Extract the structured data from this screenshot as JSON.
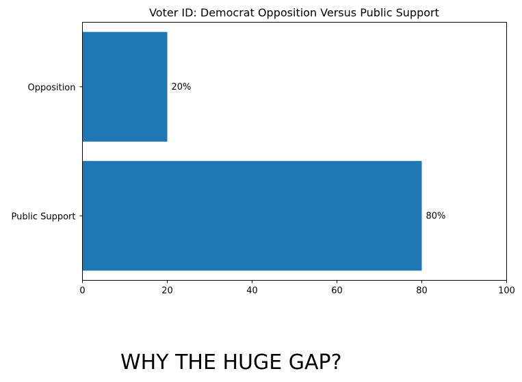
{
  "chart_data": {
    "type": "bar",
    "orientation": "horizontal",
    "title": "Voter ID: Democrat Opposition Versus Public Support",
    "xlabel": "",
    "ylabel": "",
    "categories": [
      "Public Support",
      "Opposition"
    ],
    "values": [
      80,
      20
    ],
    "data_labels": [
      "80%",
      "20%"
    ],
    "xlim": [
      0,
      100
    ],
    "xticks": [
      "0",
      "20",
      "40",
      "60",
      "80",
      "100"
    ],
    "grid": false,
    "bar_color": "#1f77b4"
  },
  "caption": "WHY THE HUGE GAP?"
}
